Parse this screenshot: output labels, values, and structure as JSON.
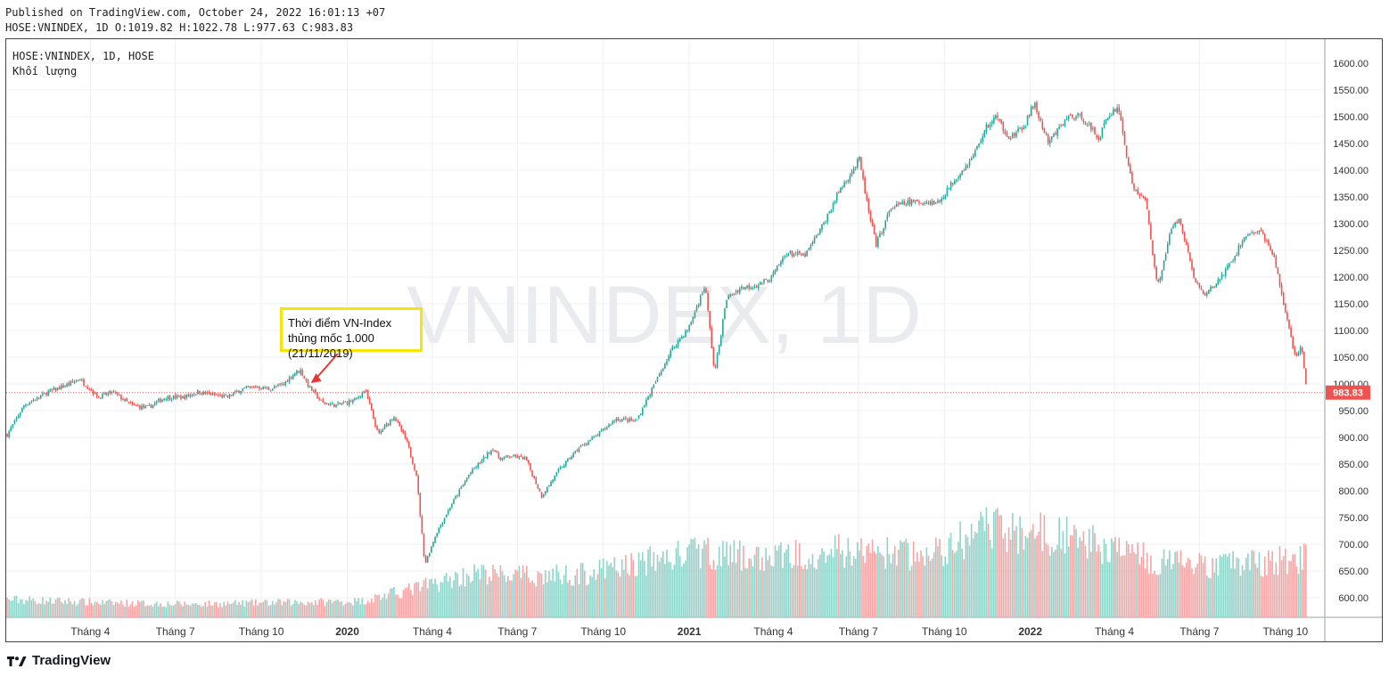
{
  "header": {
    "published": "Published on TradingView.com, October 24, 2022 16:01:13 +07",
    "ohlc": "HOSE:VNINDEX, 1D O:1019.82 H:1022.78 L:977.63 C:983.83"
  },
  "legend": {
    "symbol": "HOSE:VNINDEX, 1D, HOSE",
    "volume": "Khối lượng"
  },
  "watermark": "VNINDEX, 1D",
  "annotation": {
    "text": "Thời điểm VN-Index thủng mốc 1.000 (21/11/2019)"
  },
  "footer": {
    "brand": "TradingView"
  },
  "colors": {
    "up": "#26a69a",
    "down": "#ef5350",
    "vol_up": "#8fd3c9",
    "vol_down": "#f4a6a6",
    "price_line": "#ef5350",
    "arrow": "#e53935",
    "annotation_border": "#f5e50a"
  },
  "chart_data": {
    "type": "line",
    "title": "HOSE:VNINDEX, 1D, HOSE",
    "ylabel": "",
    "xlabel": "",
    "ylim": [
      575,
      1625
    ],
    "y_ticks": [
      "1600.00",
      "1550.00",
      "1500.00",
      "1450.00",
      "1400.00",
      "1350.00",
      "1300.00",
      "1250.00",
      "1200.00",
      "1150.00",
      "1100.00",
      "1050.00",
      "1000.00",
      "950.00",
      "900.00",
      "850.00",
      "800.00",
      "750.00",
      "700.00",
      "650.00",
      "600.00"
    ],
    "x_ticks": [
      {
        "label": "Tháng 4",
        "date": "2019-04-01",
        "bold": false
      },
      {
        "label": "Tháng 7",
        "date": "2019-07-01",
        "bold": false
      },
      {
        "label": "Tháng 10",
        "date": "2019-10-01",
        "bold": false
      },
      {
        "label": "2020",
        "date": "2020-01-01",
        "bold": true
      },
      {
        "label": "Tháng 4",
        "date": "2020-04-01",
        "bold": false
      },
      {
        "label": "Tháng 7",
        "date": "2020-07-01",
        "bold": false
      },
      {
        "label": "Tháng 10",
        "date": "2020-10-01",
        "bold": false
      },
      {
        "label": "2021",
        "date": "2021-01-01",
        "bold": true
      },
      {
        "label": "Tháng 4",
        "date": "2021-04-01",
        "bold": false
      },
      {
        "label": "Tháng 7",
        "date": "2021-07-01",
        "bold": false
      },
      {
        "label": "Tháng 10",
        "date": "2021-10-01",
        "bold": false
      },
      {
        "label": "2022",
        "date": "2022-01-01",
        "bold": true
      },
      {
        "label": "Tháng 4",
        "date": "2022-04-01",
        "bold": false
      },
      {
        "label": "Tháng 7",
        "date": "2022-07-01",
        "bold": false
      },
      {
        "label": "Tháng 10",
        "date": "2022-10-01",
        "bold": false
      }
    ],
    "last_price_label": "983.83",
    "last_price": 983.83,
    "series": [
      {
        "name": "HOSE:VNINDEX",
        "points": [
          [
            "2019-01-02",
            905
          ],
          [
            "2019-01-20",
            960
          ],
          [
            "2019-02-15",
            985
          ],
          [
            "2019-03-10",
            1000
          ],
          [
            "2019-03-20",
            1010
          ],
          [
            "2019-04-10",
            975
          ],
          [
            "2019-04-25",
            985
          ],
          [
            "2019-05-15",
            960
          ],
          [
            "2019-06-01",
            955
          ],
          [
            "2019-06-20",
            975
          ],
          [
            "2019-07-10",
            975
          ],
          [
            "2019-07-25",
            985
          ],
          [
            "2019-08-10",
            980
          ],
          [
            "2019-08-25",
            975
          ],
          [
            "2019-09-10",
            990
          ],
          [
            "2019-09-25",
            995
          ],
          [
            "2019-10-10",
            990
          ],
          [
            "2019-10-25",
            1000
          ],
          [
            "2019-11-05",
            1020
          ],
          [
            "2019-11-12",
            1025
          ],
          [
            "2019-11-21",
            995
          ],
          [
            "2019-12-05",
            965
          ],
          [
            "2019-12-20",
            960
          ],
          [
            "2020-01-10",
            970
          ],
          [
            "2020-01-20",
            990
          ],
          [
            "2020-02-03",
            905
          ],
          [
            "2020-02-20",
            940
          ],
          [
            "2020-03-05",
            890
          ],
          [
            "2020-03-15",
            830
          ],
          [
            "2020-03-24",
            662
          ],
          [
            "2020-04-05",
            720
          ],
          [
            "2020-04-20",
            770
          ],
          [
            "2020-05-10",
            830
          ],
          [
            "2020-06-05",
            880
          ],
          [
            "2020-06-12",
            860
          ],
          [
            "2020-06-25",
            865
          ],
          [
            "2020-07-10",
            860
          ],
          [
            "2020-07-27",
            790
          ],
          [
            "2020-08-15",
            840
          ],
          [
            "2020-09-05",
            880
          ],
          [
            "2020-09-25",
            905
          ],
          [
            "2020-10-15",
            935
          ],
          [
            "2020-11-05",
            930
          ],
          [
            "2020-11-25",
            1000
          ],
          [
            "2020-12-15",
            1070
          ],
          [
            "2020-12-31",
            1103
          ],
          [
            "2021-01-18",
            1185
          ],
          [
            "2021-01-28",
            1020
          ],
          [
            "2021-02-10",
            1160
          ],
          [
            "2021-02-25",
            1180
          ],
          [
            "2021-03-15",
            1185
          ],
          [
            "2021-03-30",
            1200
          ],
          [
            "2021-04-15",
            1245
          ],
          [
            "2021-05-05",
            1240
          ],
          [
            "2021-05-25",
            1300
          ],
          [
            "2021-06-10",
            1360
          ],
          [
            "2021-06-25",
            1400
          ],
          [
            "2021-07-02",
            1420
          ],
          [
            "2021-07-12",
            1320
          ],
          [
            "2021-07-20",
            1260
          ],
          [
            "2021-08-05",
            1330
          ],
          [
            "2021-08-25",
            1340
          ],
          [
            "2021-09-10",
            1340
          ],
          [
            "2021-09-25",
            1340
          ],
          [
            "2021-10-15",
            1390
          ],
          [
            "2021-10-30",
            1420
          ],
          [
            "2021-11-15",
            1480
          ],
          [
            "2021-11-25",
            1500
          ],
          [
            "2021-12-10",
            1460
          ],
          [
            "2021-12-25",
            1480
          ],
          [
            "2022-01-05",
            1525
          ],
          [
            "2022-01-20",
            1450
          ],
          [
            "2022-02-10",
            1500
          ],
          [
            "2022-02-25",
            1500
          ],
          [
            "2022-03-15",
            1460
          ],
          [
            "2022-03-25",
            1500
          ],
          [
            "2022-04-05",
            1520
          ],
          [
            "2022-04-20",
            1370
          ],
          [
            "2022-05-05",
            1340
          ],
          [
            "2022-05-17",
            1180
          ],
          [
            "2022-06-01",
            1290
          ],
          [
            "2022-06-10",
            1310
          ],
          [
            "2022-06-25",
            1200
          ],
          [
            "2022-07-06",
            1165
          ],
          [
            "2022-07-20",
            1190
          ],
          [
            "2022-08-05",
            1230
          ],
          [
            "2022-08-20",
            1280
          ],
          [
            "2022-09-05",
            1285
          ],
          [
            "2022-09-20",
            1230
          ],
          [
            "2022-10-05",
            1100
          ],
          [
            "2022-10-12",
            1050
          ],
          [
            "2022-10-18",
            1070
          ],
          [
            "2022-10-24",
            983.83
          ]
        ]
      },
      {
        "name": "Khối lượng",
        "scale": "relative",
        "points": [
          [
            "2019-01",
            0.12
          ],
          [
            "2019-04",
            0.1
          ],
          [
            "2019-07",
            0.09
          ],
          [
            "2019-10",
            0.1
          ],
          [
            "2020-01",
            0.11
          ],
          [
            "2020-03",
            0.2
          ],
          [
            "2020-05",
            0.3
          ],
          [
            "2020-07",
            0.28
          ],
          [
            "2020-09",
            0.3
          ],
          [
            "2020-11",
            0.38
          ],
          [
            "2021-01",
            0.45
          ],
          [
            "2021-03",
            0.4
          ],
          [
            "2021-05",
            0.45
          ],
          [
            "2021-07",
            0.45
          ],
          [
            "2021-09",
            0.42
          ],
          [
            "2021-11",
            0.6
          ],
          [
            "2022-01",
            0.58
          ],
          [
            "2022-03",
            0.5
          ],
          [
            "2022-05",
            0.38
          ],
          [
            "2022-07",
            0.35
          ],
          [
            "2022-09",
            0.38
          ],
          [
            "2022-10",
            0.4
          ]
        ]
      }
    ],
    "grid": true,
    "legend_position": "top-left"
  }
}
